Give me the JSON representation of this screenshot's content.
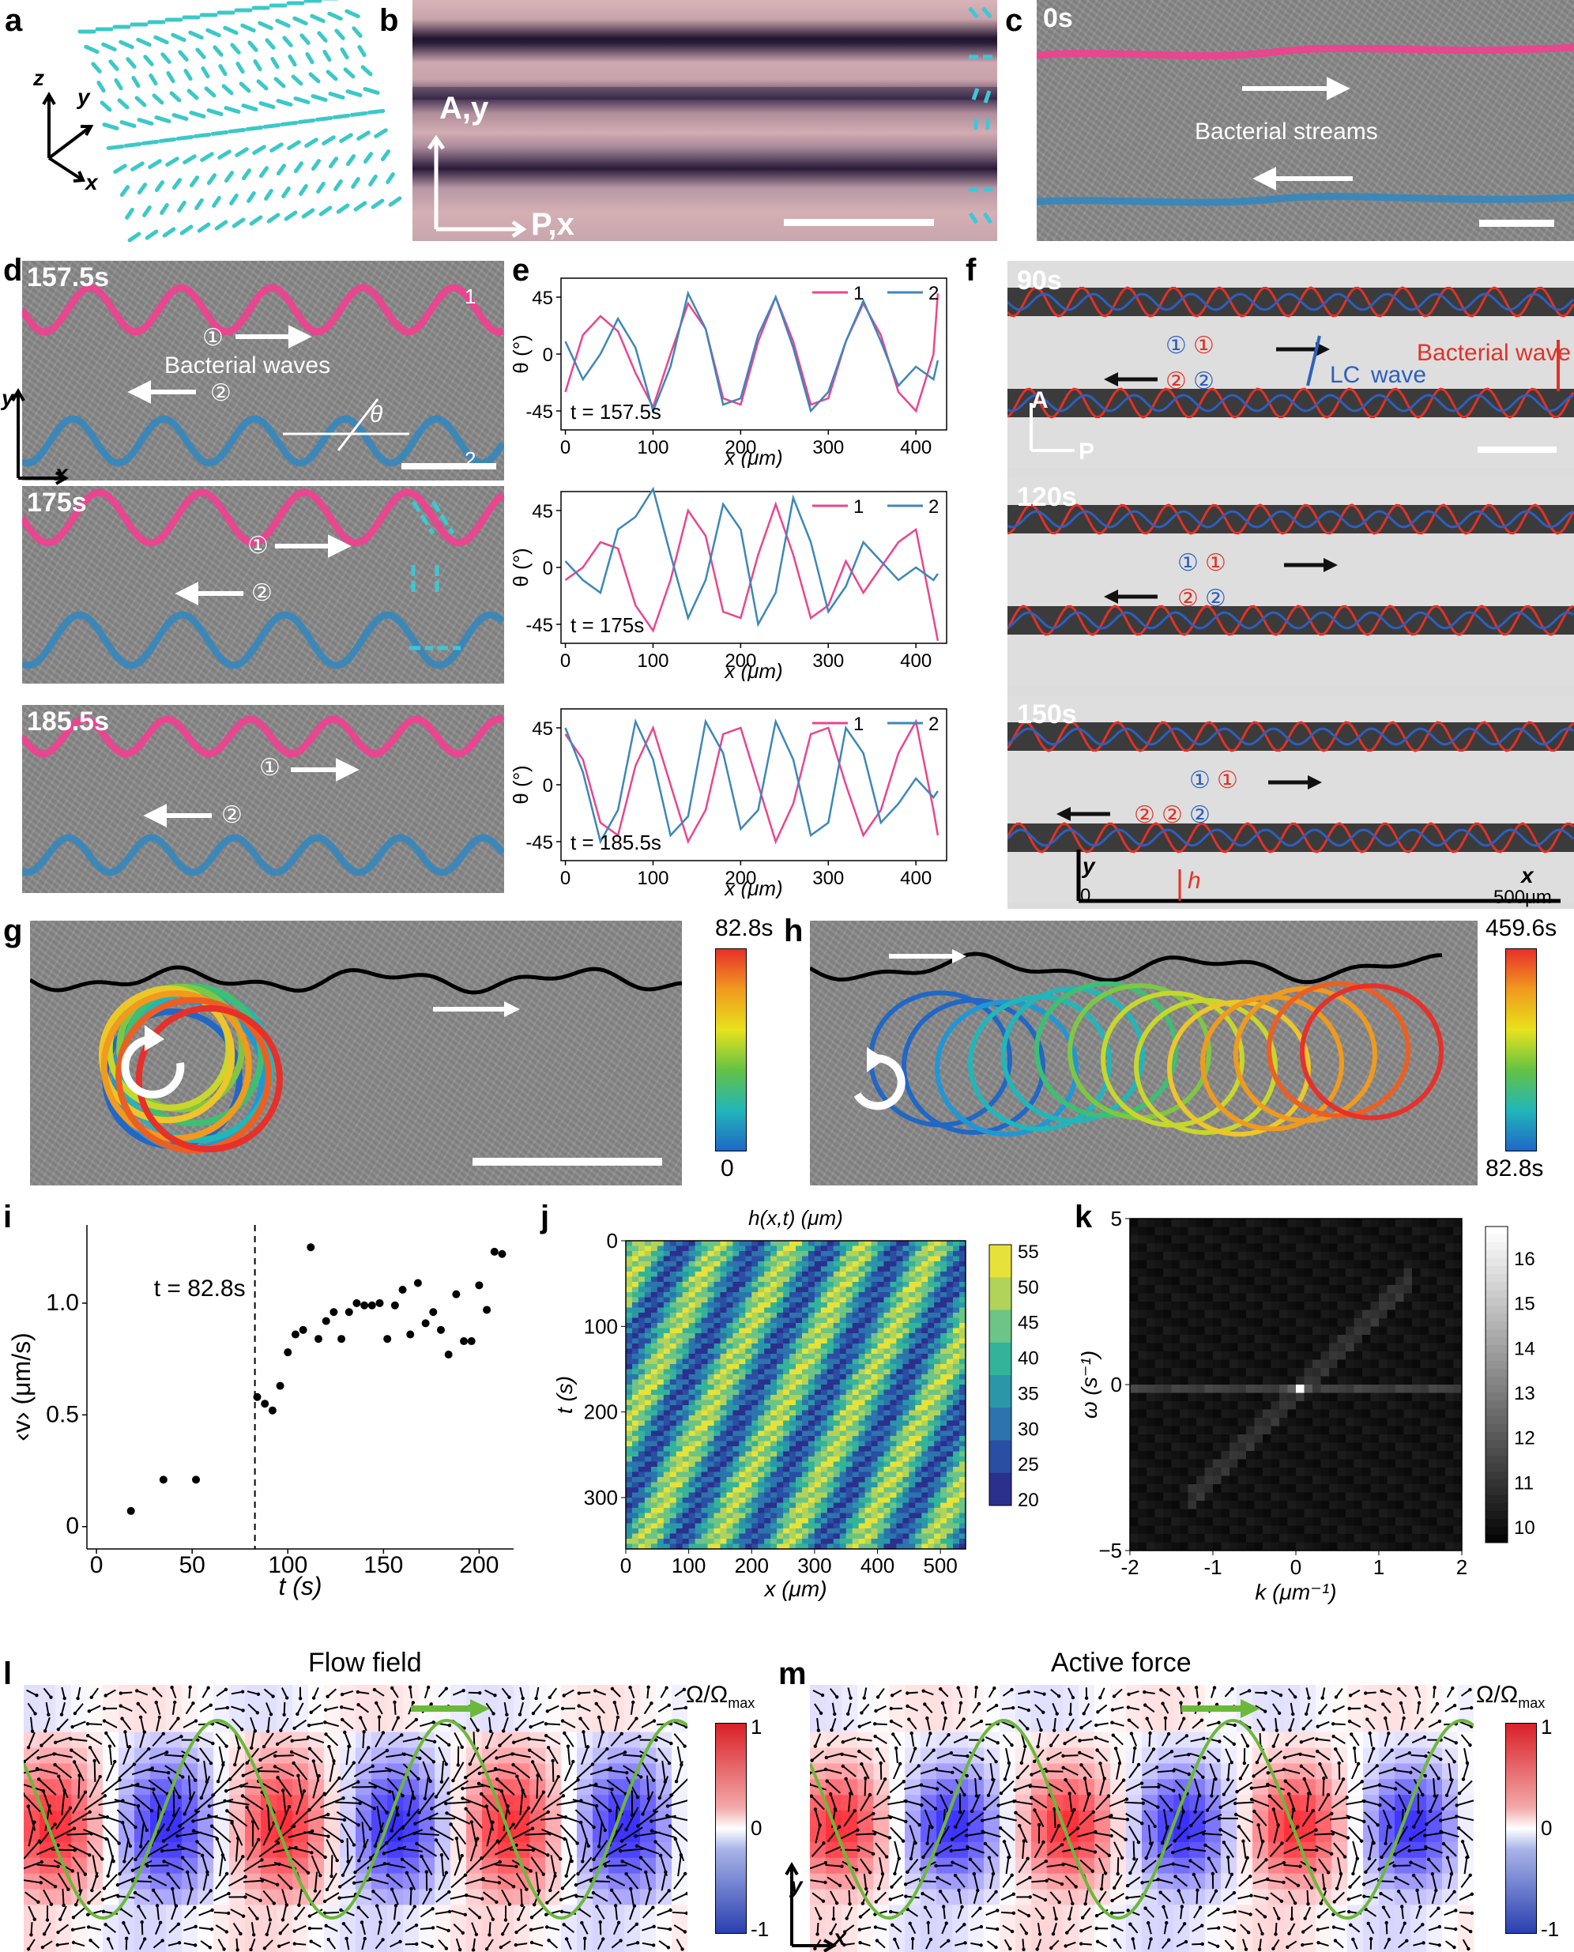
{
  "panels": {
    "a": {
      "label": "a",
      "axes": {
        "z": "z",
        "y": "y",
        "x": "x"
      }
    },
    "b": {
      "label": "b",
      "axis_a": "A,y",
      "axis_p": "P,x"
    },
    "c": {
      "label": "c",
      "time": "0s",
      "caption": "Bacterial streams"
    },
    "d": {
      "label": "d",
      "times": [
        "157.5s",
        "175s",
        "185.5s"
      ],
      "caption": "Bacterial waves",
      "circle1": "①",
      "circle2": "②",
      "line1": "1",
      "line2": "2",
      "theta": "θ",
      "axis_y": "y",
      "axis_x": "x"
    },
    "e": {
      "label": "e"
    },
    "f": {
      "label": "f",
      "times": [
        "90s",
        "120s",
        "150s"
      ],
      "circ1": "①",
      "circ2": "②",
      "bacterial_wave": "Bacterial wave",
      "lc_label": "LC",
      "lc_wave": "wave",
      "axis_a": "A",
      "axis_p": "P",
      "y": "y",
      "x": "x",
      "zero": "0",
      "length": "500μm",
      "h": "h"
    },
    "g": {
      "label": "g",
      "cb_top": "82.8s",
      "cb_bottom": "0"
    },
    "h": {
      "label": "h",
      "cb_top": "459.6s",
      "cb_bottom": "82.8s"
    },
    "i": {
      "label": "i"
    },
    "j": {
      "label": "j"
    },
    "k": {
      "label": "k"
    },
    "l": {
      "label": "l",
      "title": "Flow field",
      "cb_title": "Ω/Ω",
      "cb_sub": "max",
      "cb_ticks": [
        "1",
        "0",
        "-1"
      ]
    },
    "m": {
      "label": "m",
      "title": "Active force",
      "cb_title": "Ω/Ω",
      "cb_sub": "max",
      "cb_ticks": [
        "1",
        "0",
        "-1"
      ],
      "axis_y": "y",
      "axis_x": "x"
    }
  },
  "colors": {
    "series1": "#e8468f",
    "series2": "#3d87b8",
    "bact_red": "#e23127",
    "lc_blue": "#2d5fbf"
  },
  "chart_data": [
    {
      "id": "e-top",
      "type": "line",
      "xlabel": "x (μm)",
      "ylabel": "θ (°)",
      "annotation": "t = 157.5s",
      "xlim": [
        -5,
        435
      ],
      "ylim": [
        -60,
        60
      ],
      "xticks": [
        0,
        100,
        200,
        300,
        400
      ],
      "yticks": [
        45,
        0,
        -45
      ],
      "legend": [
        "1",
        "2"
      ],
      "series": [
        {
          "name": "1",
          "x": [
            0,
            20,
            40,
            60,
            80,
            100,
            120,
            140,
            160,
            180,
            200,
            220,
            240,
            260,
            280,
            300,
            320,
            340,
            360,
            380,
            400,
            420,
            425
          ],
          "values": [
            -30,
            15,
            30,
            18,
            -15,
            -42,
            0,
            40,
            20,
            -35,
            -40,
            10,
            45,
            10,
            -40,
            -35,
            10,
            40,
            15,
            -30,
            -45,
            0,
            48
          ]
        },
        {
          "name": "2",
          "x": [
            0,
            20,
            40,
            60,
            80,
            100,
            120,
            140,
            160,
            180,
            200,
            220,
            240,
            260,
            280,
            300,
            320,
            340,
            360,
            380,
            400,
            420,
            425
          ],
          "values": [
            10,
            -20,
            0,
            28,
            5,
            -45,
            -10,
            48,
            20,
            -40,
            -35,
            15,
            45,
            5,
            -45,
            -30,
            10,
            42,
            10,
            -25,
            -10,
            -20,
            -5
          ]
        }
      ]
    },
    {
      "id": "e-mid",
      "type": "line",
      "xlabel": "x (μm)",
      "ylabel": "θ (°)",
      "annotation": "t = 175s",
      "xlim": [
        -5,
        435
      ],
      "ylim": [
        -60,
        60
      ],
      "xticks": [
        0,
        100,
        200,
        300,
        400
      ],
      "yticks": [
        45,
        0,
        -45
      ],
      "legend": [
        "1",
        "2"
      ],
      "series": [
        {
          "name": "1",
          "x": [
            0,
            20,
            40,
            60,
            80,
            100,
            120,
            140,
            160,
            180,
            200,
            220,
            240,
            260,
            280,
            300,
            320,
            340,
            360,
            380,
            400,
            420,
            425
          ],
          "values": [
            -10,
            0,
            20,
            15,
            -30,
            -50,
            -10,
            45,
            25,
            -35,
            -40,
            10,
            50,
            10,
            -40,
            -30,
            5,
            -20,
            0,
            20,
            30,
            -40,
            -58
          ]
        },
        {
          "name": "2",
          "x": [
            0,
            20,
            40,
            60,
            80,
            100,
            120,
            140,
            160,
            180,
            200,
            220,
            240,
            260,
            280,
            300,
            320,
            340,
            360,
            380,
            400,
            420,
            425
          ],
          "values": [
            5,
            -10,
            -20,
            30,
            40,
            62,
            10,
            -40,
            -10,
            50,
            30,
            -45,
            -20,
            55,
            20,
            -35,
            -15,
            20,
            5,
            -10,
            0,
            -10,
            -5
          ]
        }
      ]
    },
    {
      "id": "e-bot",
      "type": "line",
      "xlabel": "x (μm)",
      "ylabel": "θ (°)",
      "annotation": "t = 185.5s",
      "xlim": [
        -5,
        435
      ],
      "ylim": [
        -60,
        60
      ],
      "xticks": [
        0,
        100,
        200,
        300,
        400
      ],
      "yticks": [
        45,
        0,
        -45
      ],
      "legend": [
        "1",
        "2"
      ],
      "series": [
        {
          "name": "1",
          "x": [
            0,
            20,
            40,
            60,
            80,
            100,
            120,
            140,
            160,
            180,
            200,
            220,
            240,
            260,
            280,
            300,
            320,
            340,
            360,
            380,
            400,
            420,
            425
          ],
          "values": [
            40,
            20,
            -30,
            -40,
            15,
            45,
            0,
            -45,
            -20,
            40,
            45,
            0,
            -45,
            -15,
            40,
            45,
            0,
            -40,
            -20,
            25,
            50,
            -20,
            -40
          ]
        },
        {
          "name": "2",
          "x": [
            0,
            20,
            40,
            60,
            80,
            100,
            120,
            140,
            160,
            180,
            200,
            220,
            240,
            260,
            280,
            300,
            320,
            340,
            360,
            380,
            400,
            420,
            425
          ],
          "values": [
            45,
            10,
            -45,
            -20,
            50,
            20,
            -40,
            -25,
            50,
            25,
            -35,
            -20,
            50,
            20,
            -40,
            -30,
            45,
            25,
            -30,
            -15,
            5,
            -10,
            -5
          ]
        }
      ]
    },
    {
      "id": "i",
      "type": "scatter",
      "xlabel": "t (s)",
      "ylabel": "‹v› (μm/s)",
      "annotation": "t = 82.8s",
      "vline": 82.8,
      "xlim": [
        -5,
        218
      ],
      "ylim": [
        -0.1,
        1.35
      ],
      "xticks": [
        0,
        50,
        100,
        150,
        200
      ],
      "yticks": [
        0,
        0.5,
        1.0
      ],
      "x": [
        18,
        35,
        52,
        84,
        88,
        92,
        96,
        100,
        104,
        108,
        112,
        116,
        120,
        124,
        128,
        132,
        136,
        140,
        144,
        148,
        152,
        156,
        160,
        164,
        168,
        172,
        176,
        180,
        184,
        188,
        192,
        196,
        200,
        204,
        208,
        212
      ],
      "values": [
        0.07,
        0.21,
        0.21,
        0.58,
        0.55,
        0.52,
        0.63,
        0.78,
        0.86,
        0.88,
        1.25,
        0.84,
        0.92,
        0.96,
        0.84,
        0.96,
        1.0,
        0.99,
        0.99,
        1.0,
        0.84,
        0.99,
        1.06,
        0.86,
        1.09,
        0.91,
        0.96,
        0.88,
        0.77,
        1.04,
        0.83,
        0.83,
        1.08,
        0.97,
        1.23,
        1.22
      ]
    },
    {
      "id": "j",
      "type": "heatmap",
      "title": "h(x,t) (μm)",
      "xlabel": "x (μm)",
      "ylabel": "t (s)",
      "xlim": [
        0,
        540
      ],
      "ylim": [
        0,
        360
      ],
      "xticks": [
        0,
        100,
        200,
        300,
        400,
        500
      ],
      "yticks": [
        0,
        100,
        200,
        300
      ],
      "colorbar": [
        55,
        50,
        45,
        40,
        35,
        30,
        25,
        20
      ]
    },
    {
      "id": "k",
      "type": "heatmap",
      "xlabel": "k (μm⁻¹)",
      "ylabel": "ω (s⁻¹)",
      "xlim": [
        -2,
        2
      ],
      "ylim": [
        -5,
        5
      ],
      "xticks": [
        "-2",
        "-1",
        "0",
        "1",
        "2"
      ],
      "yticks": [
        "5",
        "0",
        "−5"
      ],
      "colorbar": [
        16,
        15,
        14,
        13,
        12,
        11,
        10
      ]
    }
  ]
}
